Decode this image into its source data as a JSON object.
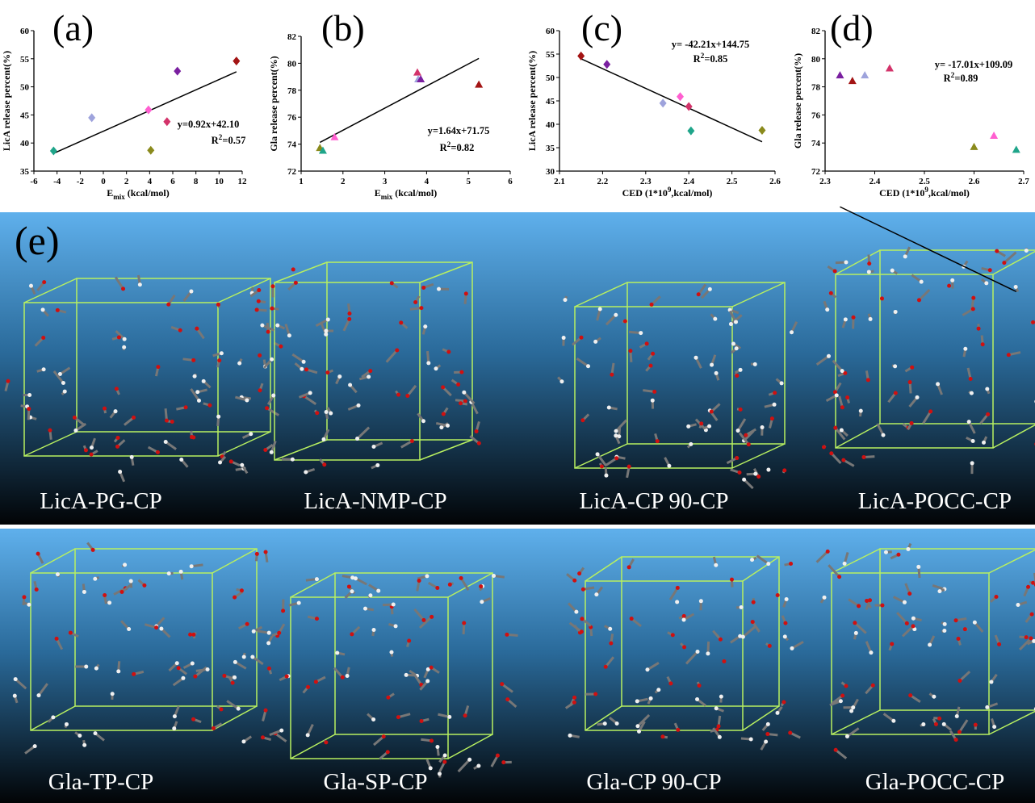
{
  "chart_data": [
    {
      "type": "scatter",
      "letter": "(a)",
      "marker": "diamond",
      "x_label": {
        "text": "E",
        "sub": "mix",
        "rest": " (kcal/mol)"
      },
      "y_label": "LicA release percent(%)",
      "x": [
        -4.3,
        -1.0,
        3.9,
        4.1,
        5.5,
        6.4,
        11.5
      ],
      "values": [
        38.6,
        44.5,
        45.9,
        38.7,
        43.8,
        52.8,
        54.6
      ],
      "colors": [
        "#1fa58a",
        "#9ea3dc",
        "#ff5fd0",
        "#8a8a1c",
        "#d3336a",
        "#7a1fa0",
        "#a31414"
      ],
      "xlim": [
        -6,
        12
      ],
      "xticks": [
        -6,
        -4,
        -2,
        0,
        2,
        4,
        6,
        8,
        10,
        12
      ],
      "ylim": [
        35,
        60
      ],
      "yticks": [
        35,
        40,
        45,
        50,
        55,
        60
      ],
      "fit": {
        "slope": 0.92,
        "intercept": 42.1,
        "x": [
          -4.3,
          11.5
        ]
      },
      "equation": "y=0.92x+42.10",
      "r2": {
        "text": "R",
        "sup": "2",
        "rest": "=0.57"
      }
    },
    {
      "type": "scatter",
      "letter": "(b)",
      "marker": "triangle",
      "x_label": {
        "text": "E",
        "sub": "mix",
        "rest": " (kcal/mol)"
      },
      "y_label": "Gla release percent(%)",
      "x": [
        1.45,
        1.52,
        1.8,
        3.78,
        3.8,
        3.86,
        5.25
      ],
      "values": [
        73.7,
        73.5,
        74.5,
        79.3,
        78.8,
        78.8,
        78.4
      ],
      "colors": [
        "#8a8a1c",
        "#1fa58a",
        "#ff5fd0",
        "#d3336a",
        "#9ea3dc",
        "#7a1fa0",
        "#a31414"
      ],
      "xlim": [
        1,
        6
      ],
      "xticks": [
        1,
        2,
        3,
        4,
        5,
        6
      ],
      "ylim": [
        72,
        82
      ],
      "yticks": [
        72,
        74,
        76,
        78,
        80,
        82
      ],
      "fit": {
        "slope": 1.64,
        "intercept": 71.75,
        "x": [
          1.45,
          5.25
        ]
      },
      "equation": "y=1.64x+71.75",
      "r2": {
        "text": "R",
        "sup": "2",
        "rest": "=0.82"
      }
    },
    {
      "type": "scatter",
      "letter": "(c)",
      "marker": "diamond",
      "x_label": {
        "text": "CED (1*10",
        "sup": "9",
        "rest": ",kcal/mol)"
      },
      "y_label": "LicA release percent(%)",
      "x": [
        2.15,
        2.21,
        2.34,
        2.38,
        2.4,
        2.405,
        2.57
      ],
      "values": [
        54.6,
        52.8,
        44.5,
        45.9,
        43.8,
        38.6,
        38.7
      ],
      "colors": [
        "#a31414",
        "#7a1fa0",
        "#9ea3dc",
        "#ff5fd0",
        "#d3336a",
        "#1fa58a",
        "#8a8a1c"
      ],
      "xlim": [
        2.1,
        2.6
      ],
      "xticks": [
        2.1,
        2.2,
        2.3,
        2.4,
        2.5,
        2.6
      ],
      "ylim": [
        30,
        60
      ],
      "yticks": [
        30,
        35,
        40,
        45,
        50,
        55,
        60
      ],
      "fit": {
        "slope": -42.21,
        "intercept": 144.75,
        "x": [
          2.15,
          2.57
        ]
      },
      "equation": "y= -42.21x+144.75",
      "r2": {
        "text": "R",
        "sup": "2",
        "rest": "=0.85"
      }
    },
    {
      "type": "scatter",
      "letter": "(d)",
      "marker": "triangle",
      "x_label": {
        "text": "CED (1*10",
        "sup": "9",
        "rest": ",kcal/mol)"
      },
      "y_label": "Gla release percent(%)",
      "x": [
        2.33,
        2.355,
        2.38,
        2.43,
        2.6,
        2.64,
        2.685
      ],
      "values": [
        78.8,
        78.4,
        78.8,
        79.3,
        73.7,
        74.5,
        73.5
      ],
      "colors": [
        "#7a1fa0",
        "#a31414",
        "#9ea3dc",
        "#d3336a",
        "#8a8a1c",
        "#ff5fd0",
        "#1fa58a"
      ],
      "xlim": [
        2.3,
        2.7
      ],
      "xticks": [
        2.3,
        2.4,
        2.5,
        2.6,
        2.7
      ],
      "ylim": [
        72,
        82
      ],
      "yticks": [
        72,
        74,
        76,
        78,
        80,
        82
      ],
      "fit": {
        "slope": -17.01,
        "intercept": 109.09,
        "x": [
          2.33,
          2.685
        ]
      },
      "equation": "y= -17.01x+109.09",
      "r2": {
        "text": "R",
        "sup": "2",
        "rest": "=0.89"
      }
    }
  ],
  "panel_e": {
    "letter": "(e)",
    "row1": [
      "LicA-PG-CP",
      "LicA-NMP-CP",
      "LicA-CP 90-CP",
      "LicA-POCC-CP"
    ],
    "row2": [
      "Gla-TP-CP",
      "Gla-SP-CP",
      "Gla-CP 90-CP",
      "Gla-POCC-CP"
    ]
  }
}
